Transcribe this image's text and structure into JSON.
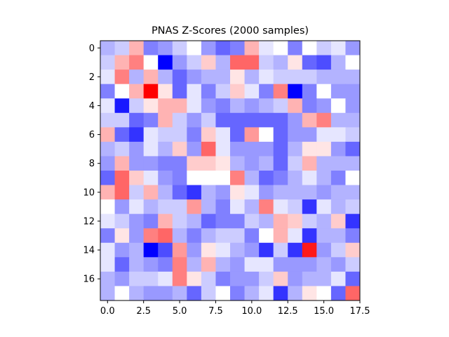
{
  "chart_data": {
    "type": "heatmap",
    "title": "PNAS Z-Scores (2000 samples)",
    "xlabel": "",
    "ylabel": "",
    "colormap": "bwr",
    "colors": {
      "low": "#0000ff",
      "mid": "#ffffff",
      "high": "#ff0000"
    },
    "value_range": [
      -1,
      1
    ],
    "xlim": [
      -0.5,
      17.5
    ],
    "ylim": [
      17.5,
      -0.5
    ],
    "x_ticks": [
      0.0,
      2.5,
      5.0,
      7.5,
      10.0,
      12.5,
      15.0,
      17.5
    ],
    "x_tick_labels": [
      "0.0",
      "2.5",
      "5.0",
      "7.5",
      "10.0",
      "12.5",
      "15.0",
      "17.5"
    ],
    "y_ticks": [
      0,
      2,
      4,
      6,
      8,
      10,
      12,
      14,
      16
    ],
    "y_tick_labels": [
      "0",
      "2",
      "4",
      "6",
      "8",
      "10",
      "12",
      "14",
      "16"
    ],
    "grid": false,
    "values": [
      [
        -0.3,
        -0.2,
        0.3,
        -0.5,
        -0.4,
        -0.2,
        0.0,
        -0.4,
        -0.6,
        -0.5,
        0.3,
        -0.1,
        0.0,
        -0.5,
        0.0,
        -0.2,
        -0.1,
        -0.4
      ],
      [
        -0.2,
        0.3,
        0.5,
        0.0,
        -1.0,
        -0.4,
        -0.2,
        0.2,
        -0.3,
        0.6,
        0.6,
        -0.2,
        -0.3,
        0.1,
        -0.6,
        -0.7,
        -0.3,
        0.0
      ],
      [
        -0.1,
        0.5,
        -0.3,
        0.3,
        -0.3,
        -0.6,
        -0.4,
        -0.3,
        -0.3,
        0.1,
        -0.3,
        -0.1,
        -0.2,
        -0.2,
        -0.2,
        -0.3,
        -0.3,
        -0.3
      ],
      [
        -0.5,
        0.0,
        0.3,
        1.0,
        0.1,
        -0.6,
        -0.1,
        -0.5,
        -0.2,
        0.2,
        -0.1,
        -0.5,
        0.5,
        -1.0,
        -0.5,
        0.0,
        -0.4,
        -0.4
      ],
      [
        -0.1,
        -0.9,
        -0.2,
        0.1,
        0.3,
        0.3,
        -0.1,
        -0.4,
        -0.5,
        -0.3,
        -0.4,
        -0.3,
        -0.2,
        0.3,
        -0.5,
        -0.4,
        0.0,
        -0.4
      ],
      [
        -0.2,
        -0.2,
        -0.6,
        -0.5,
        0.3,
        -0.2,
        -0.4,
        -0.2,
        -0.6,
        -0.6,
        -0.6,
        -0.6,
        -0.6,
        -0.4,
        0.3,
        0.5,
        -0.3,
        -0.3
      ],
      [
        0.3,
        -0.6,
        -0.8,
        -0.1,
        -0.2,
        -0.2,
        -0.5,
        0.2,
        -0.1,
        -0.6,
        0.4,
        0.0,
        -0.6,
        -0.4,
        -0.4,
        -0.1,
        -0.1,
        -0.2
      ],
      [
        -0.3,
        -0.2,
        -0.4,
        -0.1,
        -0.3,
        0.2,
        -0.4,
        0.6,
        -0.1,
        -0.4,
        -0.4,
        -0.4,
        -0.6,
        -0.3,
        0.1,
        0.1,
        -0.4,
        -0.6
      ],
      [
        -0.4,
        0.3,
        -0.4,
        -0.4,
        -0.5,
        -0.5,
        0.2,
        0.2,
        0.1,
        -0.3,
        -0.4,
        -0.3,
        -0.6,
        -0.2,
        0.3,
        -0.3,
        -0.3,
        -0.3
      ],
      [
        -0.6,
        0.6,
        0.2,
        -0.1,
        -0.4,
        -0.5,
        0.0,
        0.0,
        0.0,
        0.5,
        -0.3,
        -0.6,
        -0.5,
        -0.3,
        -0.1,
        -0.3,
        -0.5,
        0.0
      ],
      [
        0.3,
        0.6,
        -0.2,
        0.3,
        -0.3,
        -0.6,
        -0.8,
        -0.3,
        -0.4,
        0.1,
        -0.1,
        -0.4,
        -0.3,
        -0.3,
        -0.3,
        -0.4,
        -0.3,
        -0.3
      ],
      [
        -0.0,
        -0.4,
        -0.1,
        -0.3,
        -0.2,
        -0.2,
        0.4,
        -0.3,
        -0.5,
        -0.1,
        -0.3,
        0.5,
        -0.1,
        -0.2,
        -0.8,
        -0.1,
        -0.3,
        -0.2
      ],
      [
        -0.1,
        -0.2,
        -0.4,
        -0.5,
        0.3,
        -0.2,
        -0.3,
        -0.6,
        -0.5,
        -0.5,
        -0.2,
        -0.3,
        0.3,
        0.2,
        -0.2,
        -0.3,
        0.2,
        -0.8
      ],
      [
        -0.5,
        0.1,
        -0.4,
        0.5,
        0.6,
        -0.3,
        -0.5,
        -0.3,
        -0.2,
        -0.2,
        -0.5,
        0.0,
        0.3,
        -0.1,
        -0.8,
        -0.3,
        -0.3,
        -0.5
      ],
      [
        -0.1,
        -0.4,
        -0.3,
        -1.0,
        -0.7,
        0.4,
        -0.4,
        0.1,
        -0.1,
        -0.3,
        -0.4,
        -0.8,
        -0.2,
        -0.8,
        0.9,
        -0.4,
        -0.2,
        0.2
      ],
      [
        -0.1,
        -0.6,
        -0.3,
        -0.4,
        -0.5,
        0.5,
        -0.3,
        0.3,
        -0.3,
        -0.4,
        -0.1,
        -0.1,
        -0.4,
        -0.4,
        -0.4,
        -0.3,
        -0.4,
        -0.2
      ],
      [
        -0.3,
        -0.4,
        -0.2,
        -0.2,
        -0.1,
        0.5,
        0.1,
        -0.2,
        -0.5,
        -0.4,
        -0.4,
        -0.2,
        0.2,
        -0.4,
        -0.3,
        -0.3,
        -0.1,
        -0.6
      ],
      [
        -0.3,
        0.0,
        -0.3,
        -0.4,
        -0.4,
        -0.3,
        -0.6,
        -0.2,
        0.0,
        -0.5,
        -0.3,
        -0.1,
        -0.8,
        -0.3,
        0.1,
        -0.0,
        -0.6,
        0.6
      ]
    ]
  }
}
